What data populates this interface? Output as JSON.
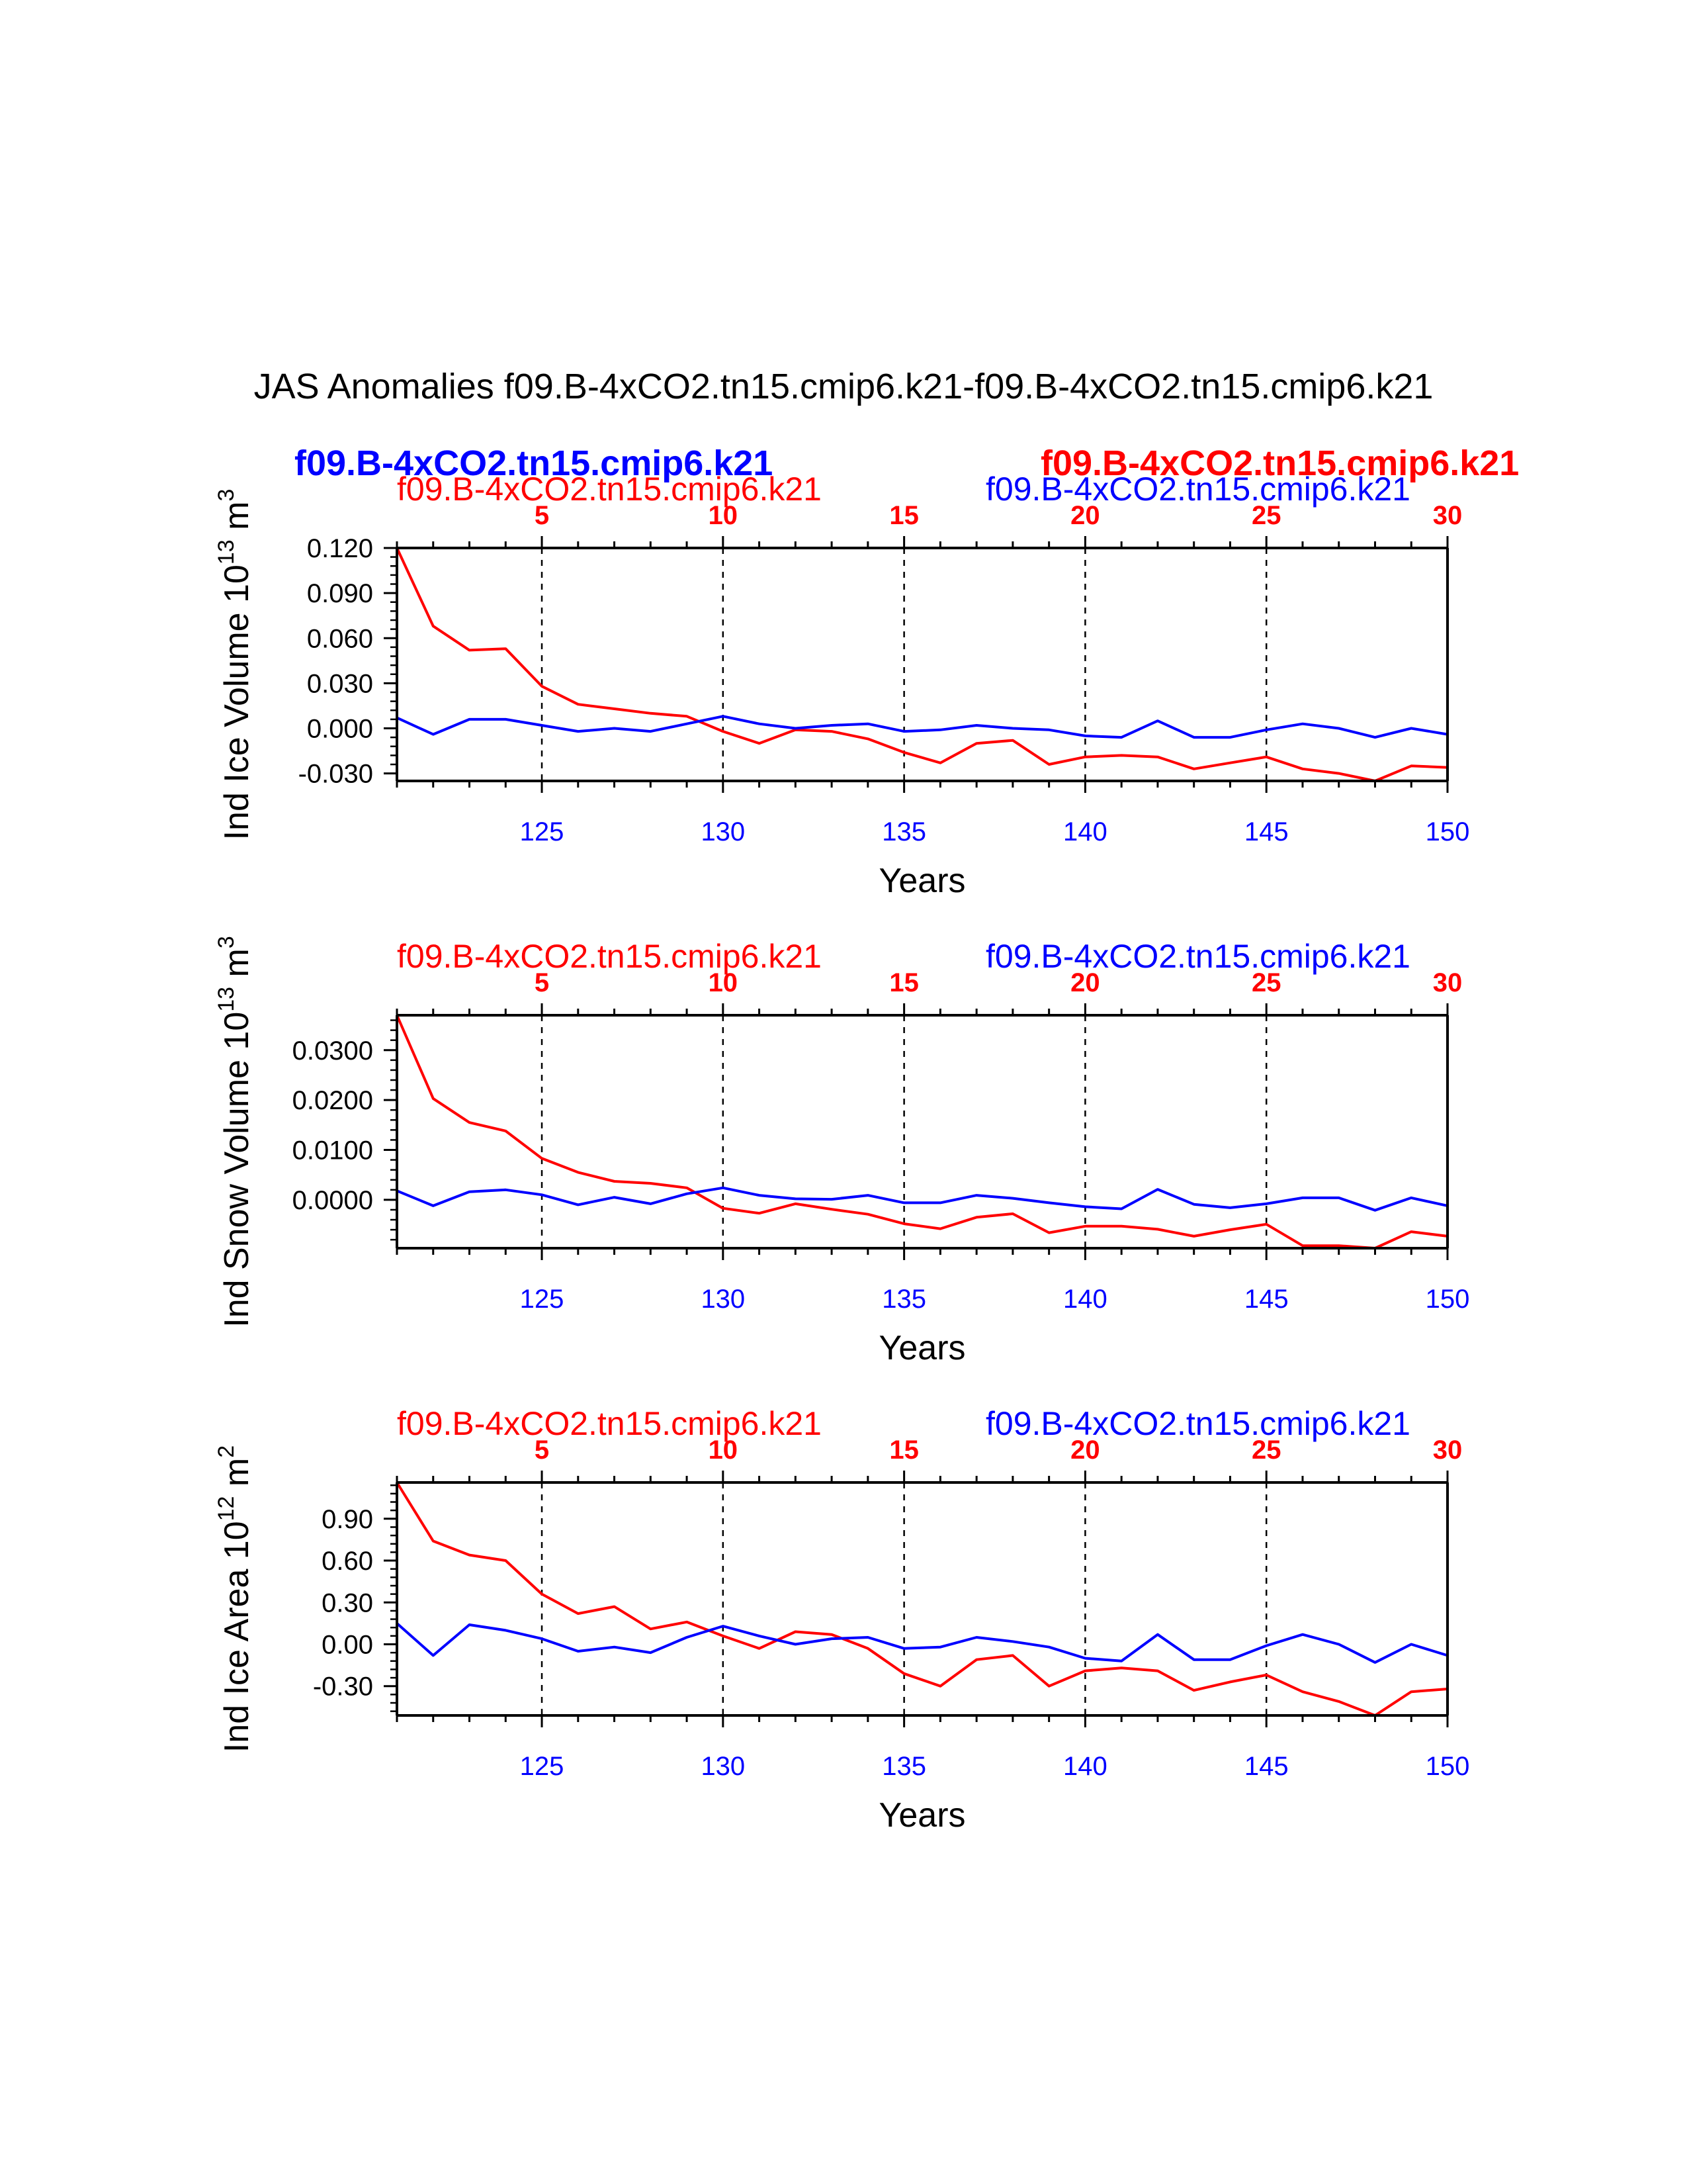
{
  "title": "JAS Anomalies f09.B-4xCO2.tn15.cmip6.k21-f09.B-4xCO2.tn15.cmip6.k21",
  "legend_overlay": {
    "blue": "f09.B-4xCO2.tn15.cmip6.k21",
    "red": "f09.B-4xCO2.tn15.cmip6.k21"
  },
  "colors": {
    "red": "#ff0000",
    "blue": "#0000ff",
    "axis": "#000000"
  },
  "chart_data": [
    {
      "type": "line",
      "ylabel": "Ind Ice Volume 10",
      "ylabel_exp": "13",
      "ylabel_unit": " m",
      "ylabel_unit_exp": "3",
      "xlabel": "Years",
      "top_left_label": "f09.B-4xCO2.tn15.cmip6.k21",
      "top_right_label": "f09.B-4xCO2.tn15.cmip6.k21",
      "bottom_x_range": [
        121,
        150
      ],
      "bottom_ticks": [
        125,
        130,
        135,
        140,
        145,
        150
      ],
      "top_ticks": [
        5,
        10,
        15,
        20,
        25,
        30
      ],
      "ylim": [
        -0.035,
        0.12
      ],
      "yticks": [
        -0.03,
        0.0,
        0.03,
        0.06,
        0.09,
        0.12
      ],
      "ytick_labels": [
        "-0.030",
        "0.000",
        "0.030",
        "0.060",
        "0.090",
        "0.120"
      ],
      "yminor": 0.006,
      "series": [
        {
          "name": "f09.B-4xCO2.tn15.cmip6.k21",
          "color": "red",
          "values": [
            0.12,
            0.068,
            0.052,
            0.053,
            0.028,
            0.016,
            0.013,
            0.01,
            0.008,
            -0.002,
            -0.01,
            -0.001,
            -0.002,
            -0.007,
            -0.016,
            -0.023,
            -0.01,
            -0.008,
            -0.024,
            -0.019,
            -0.018,
            -0.019,
            -0.027,
            -0.023,
            -0.019,
            -0.027,
            -0.03,
            -0.035,
            -0.025,
            -0.026
          ]
        },
        {
          "name": "f09.B-4xCO2.tn15.cmip6.k21",
          "color": "blue",
          "values": [
            0.007,
            -0.004,
            0.006,
            0.006,
            0.002,
            -0.002,
            0.0,
            -0.002,
            0.003,
            0.008,
            0.003,
            0.0,
            0.002,
            0.003,
            -0.002,
            -0.001,
            0.002,
            0.0,
            -0.001,
            -0.005,
            -0.006,
            0.005,
            -0.006,
            -0.006,
            -0.001,
            0.003,
            0.0,
            -0.006,
            0.0,
            -0.004
          ]
        }
      ]
    },
    {
      "type": "line",
      "ylabel": "Ind Snow Volume 10",
      "ylabel_exp": "13",
      "ylabel_unit": " m",
      "ylabel_unit_exp": "3",
      "xlabel": "Years",
      "top_left_label": "f09.B-4xCO2.tn15.cmip6.k21",
      "top_right_label": "f09.B-4xCO2.tn15.cmip6.k21",
      "bottom_x_range": [
        121,
        150
      ],
      "bottom_ticks": [
        125,
        130,
        135,
        140,
        145,
        150
      ],
      "top_ticks": [
        5,
        10,
        15,
        20,
        25,
        30
      ],
      "ylim": [
        -0.0097,
        0.037
      ],
      "yticks": [
        0.0,
        0.01,
        0.02,
        0.03
      ],
      "ytick_labels": [
        "0.0000",
        "0.0100",
        "0.0200",
        "0.0300"
      ],
      "yminor": 0.002,
      "series": [
        {
          "name": "f09.B-4xCO2.tn15.cmip6.k21",
          "color": "red",
          "values": [
            0.037,
            0.0203,
            0.0155,
            0.0138,
            0.0083,
            0.0055,
            0.0037,
            0.0033,
            0.0024,
            -0.0017,
            -0.0027,
            -0.0008,
            -0.0019,
            -0.0029,
            -0.0048,
            -0.0058,
            -0.0035,
            -0.0028,
            -0.0066,
            -0.0053,
            -0.0053,
            -0.0059,
            -0.0073,
            -0.006,
            -0.0049,
            -0.0092,
            -0.0092,
            -0.0097,
            -0.0064,
            -0.0073
          ]
        },
        {
          "name": "f09.B-4xCO2.tn15.cmip6.k21",
          "color": "blue",
          "values": [
            0.0018,
            -0.0012,
            0.0016,
            0.002,
            0.001,
            -0.001,
            0.0005,
            -0.0008,
            0.0012,
            0.0024,
            0.0009,
            0.0002,
            0.0001,
            0.0009,
            -0.0006,
            -0.0006,
            0.0009,
            0.0003,
            -0.0006,
            -0.0014,
            -0.0018,
            0.0021,
            -0.0009,
            -0.0016,
            -0.0008,
            0.0004,
            0.0004,
            -0.0021,
            0.0004,
            -0.0012
          ]
        }
      ]
    },
    {
      "type": "line",
      "ylabel": "Ind Ice Area 10",
      "ylabel_exp": "12",
      "ylabel_unit": " m",
      "ylabel_unit_exp": "2",
      "xlabel": "Years",
      "top_left_label": "f09.B-4xCO2.tn15.cmip6.k21",
      "top_right_label": "f09.B-4xCO2.tn15.cmip6.k21",
      "bottom_x_range": [
        121,
        150
      ],
      "bottom_ticks": [
        125,
        130,
        135,
        140,
        145,
        150
      ],
      "top_ticks": [
        5,
        10,
        15,
        20,
        25,
        30
      ],
      "ylim": [
        -0.51,
        1.16
      ],
      "yticks": [
        -0.3,
        0.0,
        0.3,
        0.6,
        0.9
      ],
      "ytick_labels": [
        "-0.30",
        "0.00",
        "0.30",
        "0.60",
        "0.90"
      ],
      "yminor": 0.06,
      "series": [
        {
          "name": "f09.B-4xCO2.tn15.cmip6.k21",
          "color": "red",
          "values": [
            1.16,
            0.74,
            0.64,
            0.6,
            0.36,
            0.22,
            0.27,
            0.11,
            0.16,
            0.06,
            -0.03,
            0.09,
            0.07,
            -0.03,
            -0.21,
            -0.3,
            -0.11,
            -0.08,
            -0.3,
            -0.19,
            -0.17,
            -0.19,
            -0.33,
            -0.27,
            -0.22,
            -0.34,
            -0.41,
            -0.51,
            -0.34,
            -0.32
          ]
        },
        {
          "name": "f09.B-4xCO2.tn15.cmip6.k21",
          "color": "blue",
          "values": [
            0.15,
            -0.08,
            0.14,
            0.1,
            0.04,
            -0.05,
            -0.02,
            -0.06,
            0.05,
            0.13,
            0.06,
            0.0,
            0.04,
            0.05,
            -0.03,
            -0.02,
            0.05,
            0.02,
            -0.02,
            -0.1,
            -0.12,
            0.07,
            -0.11,
            -0.11,
            -0.01,
            0.07,
            0.0,
            -0.13,
            0.0,
            -0.08
          ]
        }
      ]
    }
  ]
}
